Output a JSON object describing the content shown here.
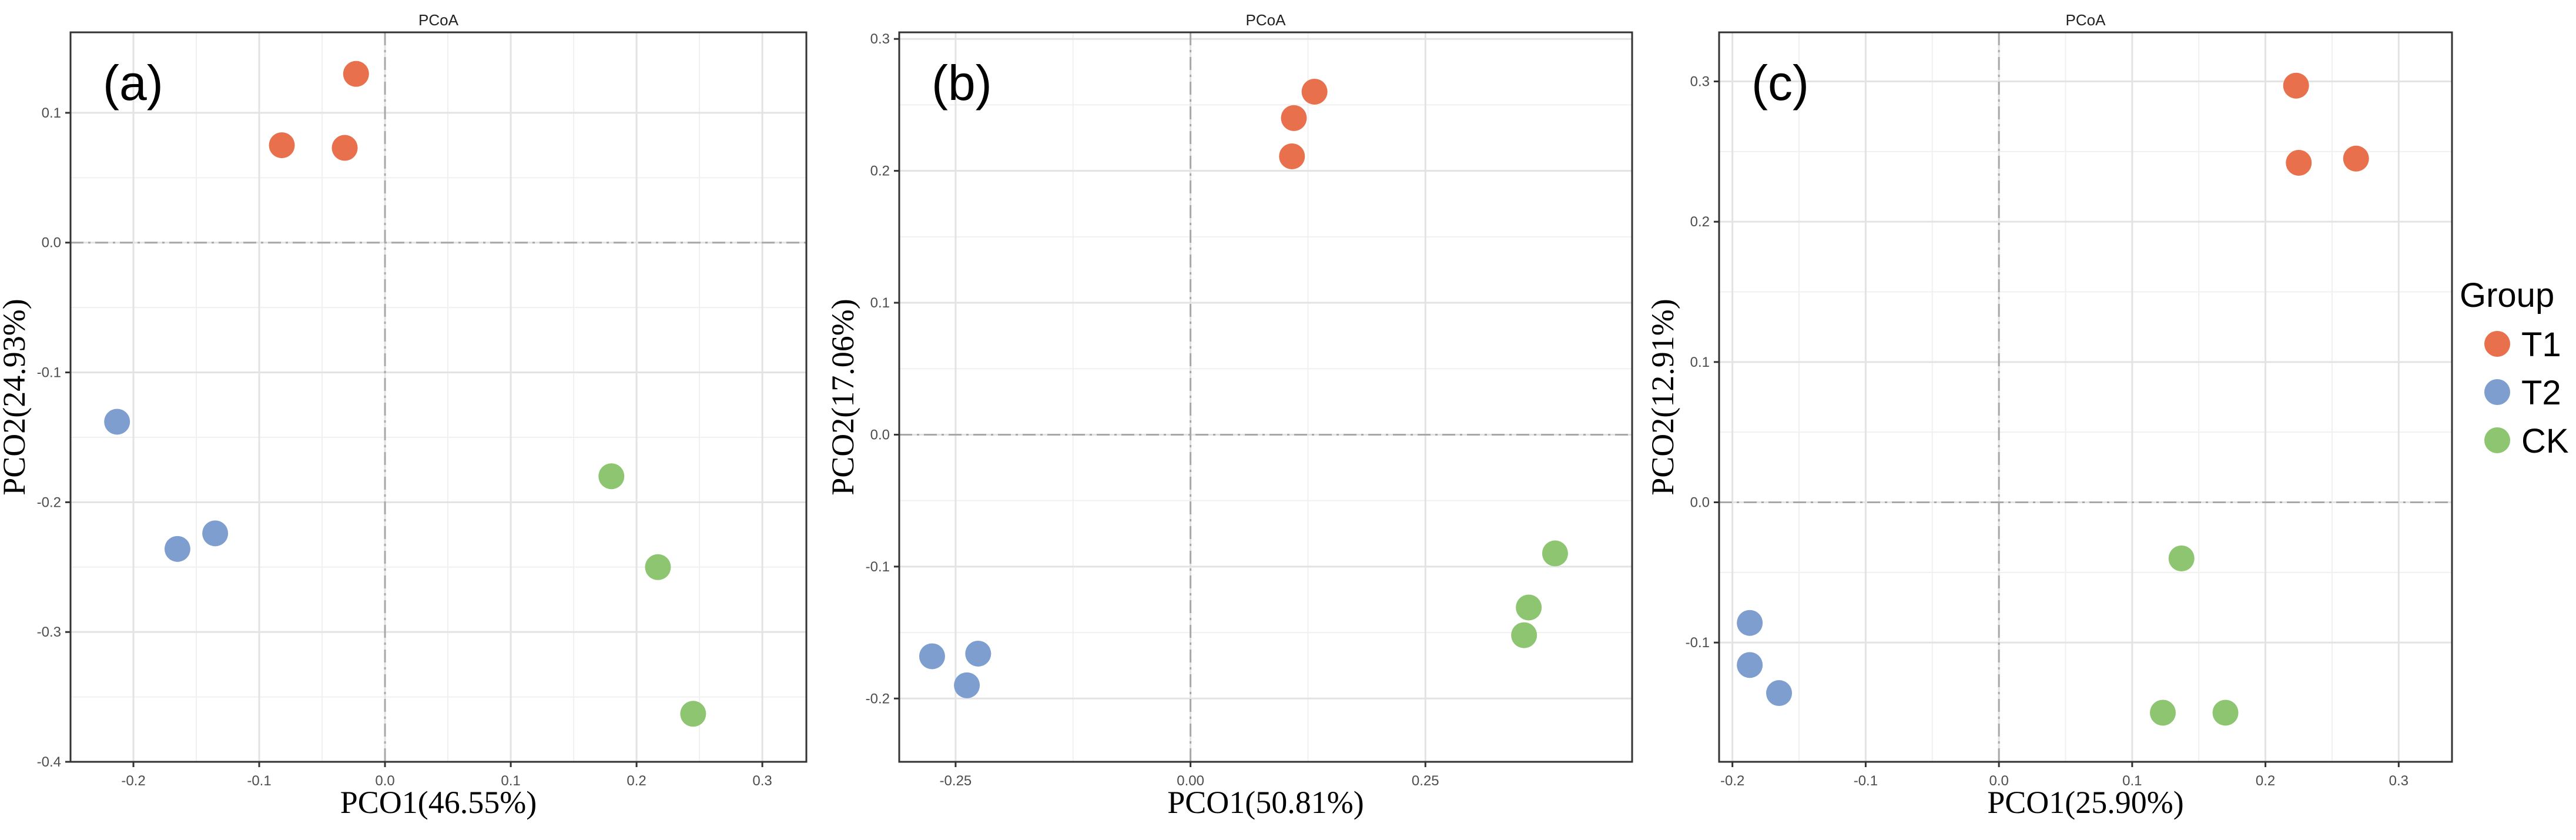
{
  "chart_data": [
    {
      "type": "scatter",
      "panel_label": "(a)",
      "title": "PCoA",
      "xlabel": "PCO1(46.55%)",
      "ylabel": "PCO2(24.93%)",
      "xlim": [
        -0.25,
        0.335
      ],
      "ylim": [
        -0.4,
        0.162
      ],
      "xticks": [
        -0.2,
        -0.1,
        0.0,
        0.1,
        0.2,
        0.3
      ],
      "xtick_labels": [
        "-0.2",
        "-0.1",
        "0.0",
        "0.1",
        "0.2",
        "0.3"
      ],
      "yticks": [
        -0.4,
        -0.3,
        -0.2,
        -0.1,
        0.0,
        0.1
      ],
      "ytick_labels": [
        "-0.4",
        "-0.3",
        "-0.2",
        "-0.1",
        "0.0",
        "0.1"
      ],
      "grid": true,
      "series": [
        {
          "name": "T1",
          "color": "#E8704D",
          "points": [
            [
              -0.082,
              0.075
            ],
            [
              -0.032,
              0.073
            ],
            [
              -0.023,
              0.13
            ]
          ]
        },
        {
          "name": "T2",
          "color": "#7E9ECF",
          "points": [
            [
              -0.213,
              -0.138
            ],
            [
              -0.165,
              -0.236
            ],
            [
              -0.135,
              -0.224
            ]
          ]
        },
        {
          "name": "CK",
          "color": "#8DC571",
          "points": [
            [
              0.18,
              -0.18
            ],
            [
              0.217,
              -0.25
            ],
            [
              0.245,
              -0.363
            ]
          ]
        }
      ]
    },
    {
      "type": "scatter",
      "panel_label": "(b)",
      "title": "PCoA",
      "xlabel": "PCO1(50.81%)",
      "ylabel": "PCO2(17.06%)",
      "xlim": [
        -0.31,
        0.47
      ],
      "ylim": [
        -0.248,
        0.305
      ],
      "xticks": [
        -0.25,
        0.0,
        0.25
      ],
      "xtick_labels": [
        "-0.25",
        "0.00",
        "0.25"
      ],
      "yticks": [
        -0.2,
        -0.1,
        0.0,
        0.1,
        0.2,
        0.3
      ],
      "ytick_labels": [
        "-0.2",
        "-0.1",
        "0.0",
        "0.1",
        "0.2",
        "0.3"
      ],
      "grid": true,
      "series": [
        {
          "name": "T1",
          "color": "#E8704D",
          "points": [
            [
              0.108,
              0.211
            ],
            [
              0.11,
              0.24
            ],
            [
              0.132,
              0.26
            ]
          ]
        },
        {
          "name": "T2",
          "color": "#7E9ECF",
          "points": [
            [
              -0.275,
              -0.168
            ],
            [
              -0.238,
              -0.19
            ],
            [
              -0.226,
              -0.166
            ]
          ]
        },
        {
          "name": "CK",
          "color": "#8DC571",
          "points": [
            [
              0.355,
              -0.152
            ],
            [
              0.36,
              -0.131
            ],
            [
              0.388,
              -0.09
            ]
          ]
        }
      ]
    },
    {
      "type": "scatter",
      "panel_label": "(c)",
      "title": "PCoA",
      "xlabel": "PCO1(25.90%)",
      "ylabel": "PCO2(12.91%)",
      "xlim": [
        -0.21,
        0.34
      ],
      "ylim": [
        -0.185,
        0.335
      ],
      "xticks": [
        -0.2,
        -0.1,
        0.0,
        0.1,
        0.2,
        0.3
      ],
      "xtick_labels": [
        "-0.2",
        "-0.1",
        "0.0",
        "0.1",
        "0.2",
        "0.3"
      ],
      "yticks": [
        -0.1,
        0.0,
        0.1,
        0.2,
        0.3
      ],
      "ytick_labels": [
        "-0.1",
        "0.0",
        "0.1",
        "0.2",
        "0.3"
      ],
      "grid": true,
      "series": [
        {
          "name": "T1",
          "color": "#E8704D",
          "points": [
            [
              0.223,
              0.297
            ],
            [
              0.225,
              0.242
            ],
            [
              0.268,
              0.245
            ]
          ]
        },
        {
          "name": "T2",
          "color": "#7E9ECF",
          "points": [
            [
              -0.187,
              -0.086
            ],
            [
              -0.187,
              -0.116
            ],
            [
              -0.165,
              -0.136
            ]
          ]
        },
        {
          "name": "CK",
          "color": "#8DC571",
          "points": [
            [
              0.123,
              -0.15
            ],
            [
              0.137,
              -0.04
            ],
            [
              0.17,
              -0.15
            ]
          ]
        }
      ]
    }
  ],
  "legend": {
    "title": "Group",
    "items": [
      {
        "label": "T1",
        "color": "#E8704D"
      },
      {
        "label": "T2",
        "color": "#7E9ECF"
      },
      {
        "label": "CK",
        "color": "#8DC571"
      }
    ]
  }
}
